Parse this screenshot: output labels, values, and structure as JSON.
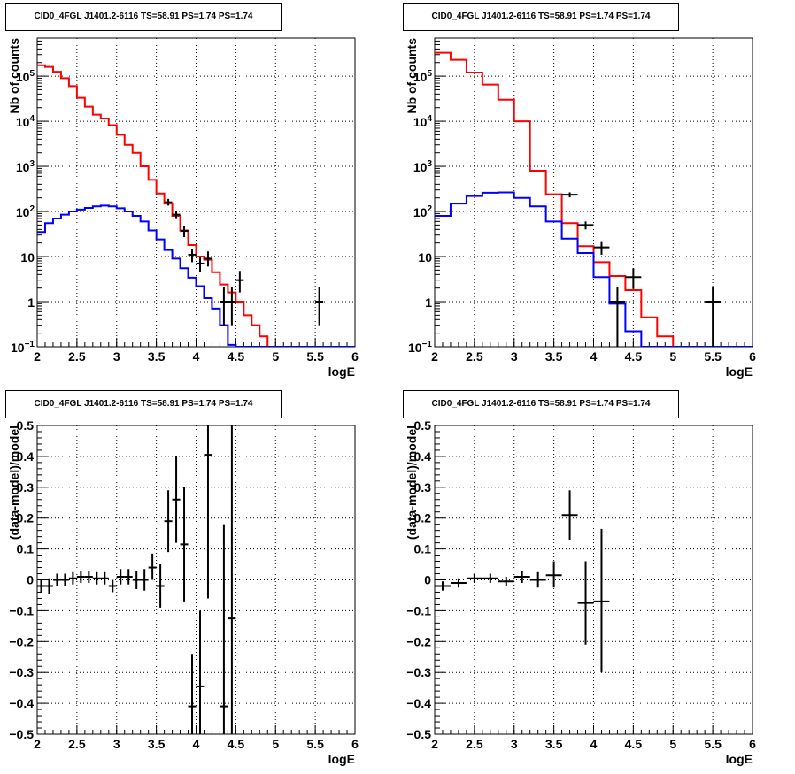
{
  "panels": [
    {
      "title": "CID0_4FGL J1401.2-6116 TS=58.91 PS=1.74 PS=1.74"
    },
    {
      "title": "CID0_4FGL J1401.2-6116 TS=58.91 PS=1.74 PS=1.74"
    },
    {
      "title": "CID0_4FGL J1401.2-6116 TS=58.91 PS=1.74 PS=1.74"
    },
    {
      "title": "CID0_4FGL J1401.2-6116 TS=58.91 PS=1.74 PS=1.74"
    }
  ],
  "colors": {
    "total_model": "#ff0000",
    "source_model": "#0000ff",
    "data": "#000000",
    "grid": "#000000"
  },
  "chart_data": [
    {
      "type": "line",
      "title": "CID0_4FGL J1401.2-6116 TS=58.91 PS=1.74 PS=1.74",
      "xlabel": "logE",
      "ylabel": "Nb of counts",
      "xlim": [
        2,
        6
      ],
      "ylim": [
        0.1,
        700000
      ],
      "yscale": "log",
      "xticks": [
        2,
        2.5,
        3,
        3.5,
        4,
        4.5,
        5,
        5.5,
        6
      ],
      "xtick_labels": [
        "2",
        "2.5",
        "3",
        "3.5",
        "4",
        "4.5",
        "5",
        "5.5",
        "6"
      ],
      "yticks": [
        0.1,
        1,
        10,
        100,
        1000,
        10000,
        100000
      ],
      "ytick_labels": [
        {
          "base": "10",
          "exp": "−1"
        },
        {
          "base": "1",
          "exp": ""
        },
        {
          "base": "10",
          "exp": ""
        },
        {
          "base": "10",
          "exp": "2"
        },
        {
          "base": "10",
          "exp": "3"
        },
        {
          "base": "10",
          "exp": "4"
        },
        {
          "base": "10",
          "exp": "5"
        }
      ],
      "grid": true,
      "bin_edges": [
        2.0,
        2.1,
        2.2,
        2.3,
        2.4,
        2.5,
        2.6,
        2.7,
        2.8,
        2.9,
        3.0,
        3.1,
        3.2,
        3.3,
        3.4,
        3.5,
        3.6,
        3.7,
        3.8,
        3.9,
        4.0,
        4.1,
        4.2,
        4.3,
        4.4,
        4.5,
        4.6,
        4.7,
        4.8,
        4.9,
        5.0,
        5.1,
        5.2,
        5.3,
        5.4,
        5.5,
        5.6,
        5.7,
        5.8,
        5.9,
        6.0
      ],
      "series": [
        {
          "role": "total_model",
          "values": [
            175000,
            160000,
            125000,
            90000,
            60000,
            33000,
            21000,
            14000,
            11500,
            8200,
            5000,
            3000,
            2000,
            1000,
            500,
            250,
            150,
            80,
            38,
            18,
            10,
            8.5,
            4.5,
            2.4,
            1.6,
            1.0,
            0.5,
            0.3,
            0.17,
            0.1,
            0.1,
            0.1,
            0.1,
            0.1,
            0.1,
            0.1,
            0.1,
            0.1,
            0.1,
            0.1
          ]
        },
        {
          "role": "source_model",
          "values": [
            35,
            55,
            70,
            85,
            100,
            110,
            120,
            130,
            135,
            130,
            118,
            100,
            80,
            60,
            38,
            24,
            14,
            9,
            5.5,
            3.4,
            2.2,
            1.2,
            0.7,
            0.3,
            0.11,
            0.1,
            0.1,
            0.1,
            0.1,
            0.1,
            0.1,
            0.1,
            0.1,
            0.1,
            0.1,
            0.1,
            0.1,
            0.1,
            0.1,
            0.1
          ]
        },
        {
          "role": "data",
          "points": [
            {
              "x": 3.65,
              "xerr": 0.05,
              "y": 160,
              "ylo": 135,
              "yhi": 190
            },
            {
              "x": 3.75,
              "xerr": 0.05,
              "y": 85,
              "ylo": 68,
              "yhi": 105
            },
            {
              "x": 3.85,
              "xerr": 0.05,
              "y": 37,
              "ylo": 27,
              "yhi": 48
            },
            {
              "x": 3.95,
              "xerr": 0.05,
              "y": 11,
              "ylo": 7.5,
              "yhi": 15
            },
            {
              "x": 4.05,
              "xerr": 0.05,
              "y": 7,
              "ylo": 4.5,
              "yhi": 10
            },
            {
              "x": 4.15,
              "xerr": 0.05,
              "y": 9,
              "ylo": 6,
              "yhi": 13
            },
            {
              "x": 4.35,
              "xerr": 0.05,
              "y": 1,
              "ylo": 0.3,
              "yhi": 2.1
            },
            {
              "x": 4.45,
              "xerr": 0.05,
              "y": 1,
              "ylo": 0.3,
              "yhi": 2.1
            },
            {
              "x": 4.55,
              "xerr": 0.05,
              "y": 3,
              "ylo": 1.6,
              "yhi": 4.8
            },
            {
              "x": 5.55,
              "xerr": 0.05,
              "y": 1,
              "ylo": 0.3,
              "yhi": 2.1
            }
          ]
        }
      ]
    },
    {
      "type": "line",
      "title": "CID0_4FGL J1401.2-6116 TS=58.91 PS=1.74 PS=1.74",
      "xlabel": "logE",
      "ylabel": "Nb of counts",
      "xlim": [
        2,
        6
      ],
      "ylim": [
        0.1,
        700000
      ],
      "yscale": "log",
      "xticks": [
        2,
        2.5,
        3,
        3.5,
        4,
        4.5,
        5,
        5.5,
        6
      ],
      "xtick_labels": [
        "2",
        "2.5",
        "3",
        "3.5",
        "4",
        "4.5",
        "5",
        "5.5",
        "6"
      ],
      "yticks": [
        0.1,
        1,
        10,
        100,
        1000,
        10000,
        100000
      ],
      "ytick_labels": [
        {
          "base": "10",
          "exp": "−1"
        },
        {
          "base": "1",
          "exp": ""
        },
        {
          "base": "10",
          "exp": ""
        },
        {
          "base": "10",
          "exp": "2"
        },
        {
          "base": "10",
          "exp": "3"
        },
        {
          "base": "10",
          "exp": "4"
        },
        {
          "base": "10",
          "exp": "5"
        }
      ],
      "grid": true,
      "bin_edges": [
        2.0,
        2.2,
        2.4,
        2.6,
        2.8,
        3.0,
        3.2,
        3.4,
        3.6,
        3.8,
        4.0,
        4.2,
        4.4,
        4.6,
        4.8,
        5.0,
        5.2,
        5.4,
        5.6,
        5.8,
        6.0
      ],
      "series": [
        {
          "role": "total_model",
          "values": [
            330000,
            230000,
            120000,
            65000,
            30000,
            10000,
            800,
            240,
            55,
            17,
            7.5,
            3.7,
            1.8,
            0.45,
            0.17,
            0.1,
            0.1,
            0.1,
            0.1,
            0.1
          ]
        },
        {
          "role": "source_model",
          "values": [
            80,
            150,
            220,
            260,
            265,
            200,
            130,
            60,
            25,
            12,
            3.5,
            0.9,
            0.22,
            0.1,
            0.1,
            0.1,
            0.1,
            0.1,
            0.1,
            0.1
          ]
        },
        {
          "role": "data",
          "points": [
            {
              "x": 3.7,
              "xerr": 0.1,
              "y": 235,
              "ylo": 205,
              "yhi": 265
            },
            {
              "x": 3.9,
              "xerr": 0.1,
              "y": 50,
              "ylo": 40,
              "yhi": 60
            },
            {
              "x": 4.1,
              "xerr": 0.1,
              "y": 16,
              "ylo": 11,
              "yhi": 21
            },
            {
              "x": 4.3,
              "xerr": 0.1,
              "y": 1,
              "ylo": 0.1,
              "yhi": 2.1
            },
            {
              "x": 4.5,
              "xerr": 0.1,
              "y": 3.5,
              "ylo": 1.9,
              "yhi": 5.5
            },
            {
              "x": 5.5,
              "xerr": 0.1,
              "y": 1,
              "ylo": 0.1,
              "yhi": 2.1
            }
          ]
        }
      ]
    },
    {
      "type": "scatter",
      "title": "CID0_4FGL J1401.2-6116 TS=58.91 PS=1.74 PS=1.74",
      "xlabel": "logE",
      "ylabel": "(data-model)/model",
      "xlim": [
        2,
        6
      ],
      "ylim": [
        -0.5,
        0.5
      ],
      "xticks": [
        2,
        2.5,
        3,
        3.5,
        4,
        4.5,
        5,
        5.5,
        6
      ],
      "xtick_labels": [
        "2",
        "2.5",
        "3",
        "3.5",
        "4",
        "4.5",
        "5",
        "5.5",
        "6"
      ],
      "yticks": [
        -0.5,
        -0.4,
        -0.3,
        -0.2,
        -0.1,
        0,
        0.1,
        0.2,
        0.3,
        0.4,
        0.5
      ],
      "ytick_labels": [
        "−0.5",
        "−0.4",
        "−0.3",
        "−0.2",
        "−0.1",
        "0",
        "0.1",
        "0.2",
        "0.3",
        "0.4",
        "0.5"
      ],
      "grid": true,
      "points": [
        {
          "x": 2.05,
          "xerr": 0.05,
          "y": -0.02,
          "ylo": -0.04,
          "yhi": 0.0
        },
        {
          "x": 2.15,
          "xerr": 0.05,
          "y": -0.02,
          "ylo": -0.045,
          "yhi": 0.005
        },
        {
          "x": 2.25,
          "xerr": 0.05,
          "y": 0.0,
          "ylo": -0.02,
          "yhi": 0.02
        },
        {
          "x": 2.35,
          "xerr": 0.05,
          "y": 0.0,
          "ylo": -0.02,
          "yhi": 0.02
        },
        {
          "x": 2.45,
          "xerr": 0.05,
          "y": 0.005,
          "ylo": -0.015,
          "yhi": 0.025
        },
        {
          "x": 2.55,
          "xerr": 0.05,
          "y": 0.01,
          "ylo": -0.01,
          "yhi": 0.03
        },
        {
          "x": 2.65,
          "xerr": 0.05,
          "y": 0.01,
          "ylo": -0.01,
          "yhi": 0.03
        },
        {
          "x": 2.75,
          "xerr": 0.05,
          "y": 0.005,
          "ylo": -0.015,
          "yhi": 0.025
        },
        {
          "x": 2.85,
          "xerr": 0.05,
          "y": 0.005,
          "ylo": -0.015,
          "yhi": 0.025
        },
        {
          "x": 2.95,
          "xerr": 0.05,
          "y": -0.02,
          "ylo": -0.04,
          "yhi": 0.0
        },
        {
          "x": 3.05,
          "xerr": 0.05,
          "y": 0.01,
          "ylo": -0.015,
          "yhi": 0.035
        },
        {
          "x": 3.15,
          "xerr": 0.05,
          "y": 0.01,
          "ylo": -0.015,
          "yhi": 0.035
        },
        {
          "x": 3.25,
          "xerr": 0.05,
          "y": 0.0,
          "ylo": -0.03,
          "yhi": 0.03
        },
        {
          "x": 3.35,
          "xerr": 0.05,
          "y": 0.0,
          "ylo": -0.035,
          "yhi": 0.035
        },
        {
          "x": 3.45,
          "xerr": 0.05,
          "y": 0.04,
          "ylo": 0.0,
          "yhi": 0.085
        },
        {
          "x": 3.55,
          "xerr": 0.05,
          "y": -0.02,
          "ylo": -0.09,
          "yhi": 0.05
        },
        {
          "x": 3.65,
          "xerr": 0.05,
          "y": 0.19,
          "ylo": 0.09,
          "yhi": 0.29
        },
        {
          "x": 3.75,
          "xerr": 0.05,
          "y": 0.26,
          "ylo": 0.12,
          "yhi": 0.4
        },
        {
          "x": 3.85,
          "xerr": 0.05,
          "y": 0.115,
          "ylo": -0.07,
          "yhi": 0.3
        },
        {
          "x": 3.95,
          "xerr": 0.05,
          "y": -0.41,
          "ylo": -0.56,
          "yhi": -0.24
        },
        {
          "x": 4.05,
          "xerr": 0.05,
          "y": -0.345,
          "ylo": -0.56,
          "yhi": -0.1
        },
        {
          "x": 4.15,
          "xerr": 0.05,
          "y": 0.405,
          "ylo": -0.06,
          "yhi": 0.6
        },
        {
          "x": 4.35,
          "xerr": 0.05,
          "y": -0.41,
          "ylo": -0.56,
          "yhi": 0.18
        },
        {
          "x": 4.45,
          "xerr": 0.05,
          "y": -0.125,
          "ylo": -0.56,
          "yhi": 0.6
        }
      ]
    },
    {
      "type": "scatter",
      "title": "CID0_4FGL J1401.2-6116 TS=58.91 PS=1.74 PS=1.74",
      "xlabel": "logE",
      "ylabel": "(data-model)/model",
      "xlim": [
        2,
        6
      ],
      "ylim": [
        -0.5,
        0.5
      ],
      "xticks": [
        2,
        2.5,
        3,
        3.5,
        4,
        4.5,
        5,
        5.5,
        6
      ],
      "xtick_labels": [
        "2",
        "2.5",
        "3",
        "3.5",
        "4",
        "4.5",
        "5",
        "5.5",
        "6"
      ],
      "yticks": [
        -0.5,
        -0.4,
        -0.3,
        -0.2,
        -0.1,
        0,
        0.1,
        0.2,
        0.3,
        0.4,
        0.5
      ],
      "ytick_labels": [
        "−0.5",
        "−0.4",
        "−0.3",
        "−0.2",
        "−0.1",
        "0",
        "0.1",
        "0.2",
        "0.3",
        "0.4",
        "0.5"
      ],
      "grid": true,
      "points": [
        {
          "x": 2.1,
          "xerr": 0.1,
          "y": -0.02,
          "ylo": -0.035,
          "yhi": -0.005
        },
        {
          "x": 2.3,
          "xerr": 0.1,
          "y": -0.01,
          "ylo": -0.025,
          "yhi": 0.005
        },
        {
          "x": 2.5,
          "xerr": 0.1,
          "y": 0.005,
          "ylo": -0.01,
          "yhi": 0.02
        },
        {
          "x": 2.7,
          "xerr": 0.1,
          "y": 0.005,
          "ylo": -0.01,
          "yhi": 0.02
        },
        {
          "x": 2.9,
          "xerr": 0.1,
          "y": -0.005,
          "ylo": -0.02,
          "yhi": 0.01
        },
        {
          "x": 3.1,
          "xerr": 0.1,
          "y": 0.01,
          "ylo": -0.01,
          "yhi": 0.03
        },
        {
          "x": 3.3,
          "xerr": 0.1,
          "y": 0.0,
          "ylo": -0.025,
          "yhi": 0.025
        },
        {
          "x": 3.5,
          "xerr": 0.1,
          "y": 0.015,
          "ylo": -0.025,
          "yhi": 0.06
        },
        {
          "x": 3.7,
          "xerr": 0.1,
          "y": 0.21,
          "ylo": 0.13,
          "yhi": 0.29
        },
        {
          "x": 3.9,
          "xerr": 0.1,
          "y": -0.075,
          "ylo": -0.21,
          "yhi": 0.06
        },
        {
          "x": 4.1,
          "xerr": 0.1,
          "y": -0.07,
          "ylo": -0.3,
          "yhi": 0.165
        }
      ]
    }
  ]
}
